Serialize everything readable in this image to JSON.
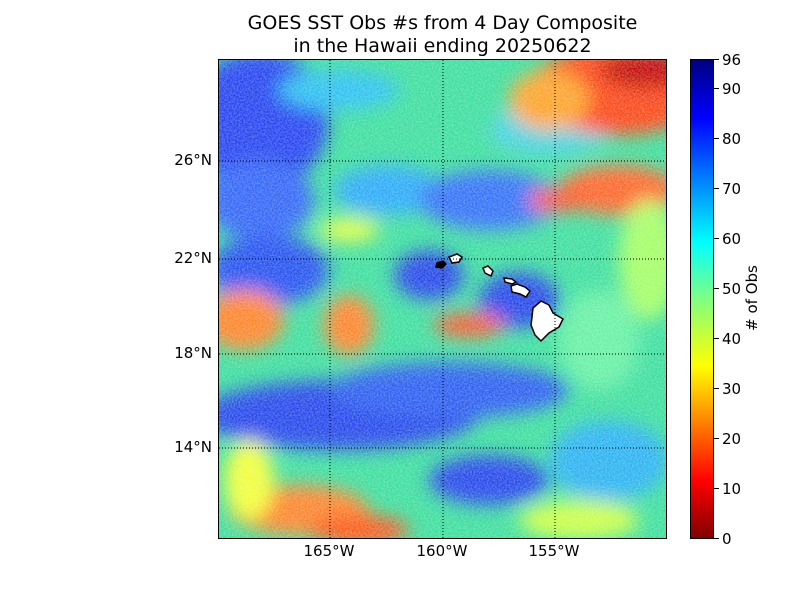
{
  "title_line1": "GOES SST Obs #s from 4 Day Composite",
  "title_line2": "in the Hawaii ending 20250622",
  "map": {
    "lat_labels": [
      "26°N",
      "22°N",
      "18°N",
      "14°N"
    ],
    "lon_labels": [
      "165°W",
      "160°W",
      "155°W"
    ],
    "land_color": "#ffffff"
  },
  "colorbar": {
    "label": "# of Obs",
    "ticks": [
      "0",
      "10",
      "20",
      "30",
      "40",
      "50",
      "60",
      "70",
      "80",
      "90",
      "96"
    ],
    "min": 0,
    "max": 96,
    "colormap": "jet"
  }
}
